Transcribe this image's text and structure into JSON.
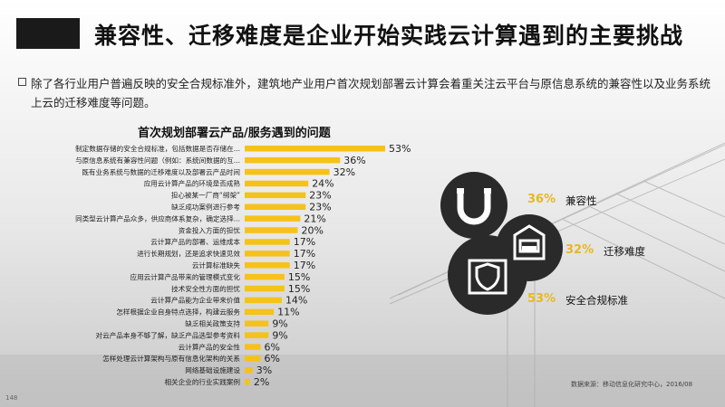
{
  "slide": {
    "title": "兼容性、迁移难度是企业开始实践云计算遇到的主要挑战",
    "intro": "除了各行业用户普遍反映的安全合规标准外，建筑地产业用户首次规划部署云计算会着重关注云平台与原信息系统的兼容性以及业务系统上云的迁移难度等问题。",
    "page_number": "148",
    "source": "数据来源：移动信息化研究中心，2016/08"
  },
  "callouts": [
    {
      "pct": "36%",
      "label": "兼容性",
      "icon": "magnet-icon"
    },
    {
      "pct": "32%",
      "label": "迁移难度",
      "icon": "garage-car-icon"
    },
    {
      "pct": "53%",
      "label": "安全合规标准",
      "icon": "shield-window-icon"
    }
  ],
  "colors": {
    "bar": "#f5c21b",
    "accent": "#e8b820",
    "circle": "#2a2a2a"
  },
  "chart_data": {
    "type": "bar",
    "orientation": "horizontal",
    "title": "首次规划部署云产品/服务遇到的问题",
    "categories": [
      "制定数据存储的安全合规标准，包括数据是否存储在...",
      "与原信息系统有兼容性问题（例如：系统间数据的互...",
      "既有业务系统与数据的迁移难度以及部署云产品时间",
      "应用云计算产品的环境是否成熟",
      "担心被某一厂商“绑架”",
      "缺乏成功案例进行参考",
      "同类型云计算产品众多，供应商体系复杂，确定选择...",
      "资金投入方面的担忧",
      "云计算产品的部署、运维成本",
      "进行长期规划，还是追求快速见效",
      "云计算标准缺失",
      "应用云计算产品带来的管理模式变化",
      "技术安全性方面的担忧",
      "云计算产品能为企业带来价值",
      "怎样根据企业自身特点选择，构建云服务",
      "缺乏相关政策支持",
      "对云产品本身不够了解，缺乏产品选型参考资料",
      "云计算产品的安全性",
      "怎样处理云计算架构与原有信息化架构的关系",
      "网络基础设施建设",
      "相关企业的行业实践案例"
    ],
    "values": [
      53,
      36,
      32,
      24,
      23,
      23,
      21,
      20,
      17,
      17,
      17,
      15,
      15,
      14,
      11,
      9,
      9,
      6,
      6,
      3,
      2
    ],
    "value_labels": [
      "53%",
      "36%",
      "32%",
      "24%",
      "23%",
      "23%",
      "21%",
      "20%",
      "17%",
      "17%",
      "17%",
      "15%",
      "15%",
      "14%",
      "11%",
      "9%",
      "9%",
      "6%",
      "6%",
      "3%",
      "2%"
    ],
    "xlim": [
      0,
      60
    ]
  }
}
